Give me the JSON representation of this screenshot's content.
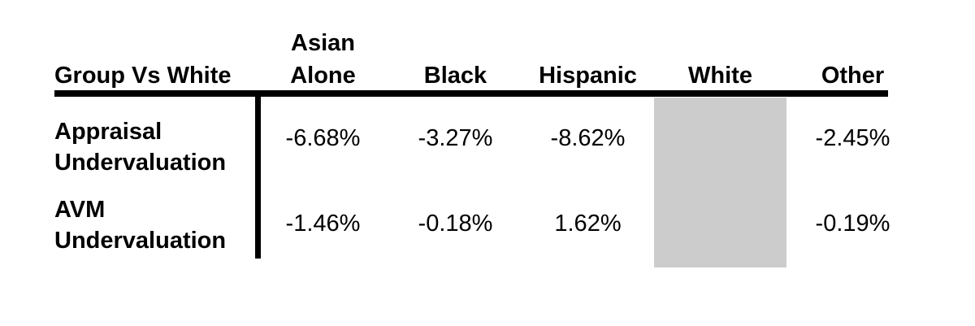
{
  "table": {
    "corner_header": "Group Vs White",
    "columns": [
      {
        "lines": [
          "Asian",
          "Alone"
        ]
      },
      {
        "lines": [
          "Black"
        ]
      },
      {
        "lines": [
          "Hispanic"
        ]
      },
      {
        "lines": [
          "White"
        ]
      },
      {
        "lines": [
          "Other"
        ]
      }
    ],
    "rows": [
      {
        "label_lines": [
          "Appraisal",
          "Undervaluation"
        ],
        "values": [
          "-6.68%",
          "-3.27%",
          "-8.62%",
          "",
          "-2.45%"
        ]
      },
      {
        "label_lines": [
          "AVM",
          "Undervaluation"
        ],
        "values": [
          "-1.46%",
          "-0.18%",
          "1.62%",
          "",
          "-0.19%"
        ]
      }
    ],
    "shaded_column": "White",
    "colors": {
      "shaded_cell": "#cccccc",
      "rule": "#000000",
      "text": "#000000",
      "background": "#ffffff"
    }
  },
  "chart_data": {
    "type": "table",
    "title": "",
    "corner_header": "Group Vs White",
    "columns": [
      "Asian Alone",
      "Black",
      "Hispanic",
      "White",
      "Other"
    ],
    "rows": [
      {
        "label": "Appraisal Undervaluation",
        "values": [
          -6.68,
          -3.27,
          -8.62,
          null,
          -2.45
        ]
      },
      {
        "label": "AVM Undervaluation",
        "values": [
          -1.46,
          -0.18,
          1.62,
          null,
          -0.19
        ]
      }
    ],
    "units": "percent",
    "shaded_column": "White",
    "layout": {
      "header_rule": true,
      "row_label_divider": true,
      "shaded_cell_color": "#cccccc"
    }
  }
}
